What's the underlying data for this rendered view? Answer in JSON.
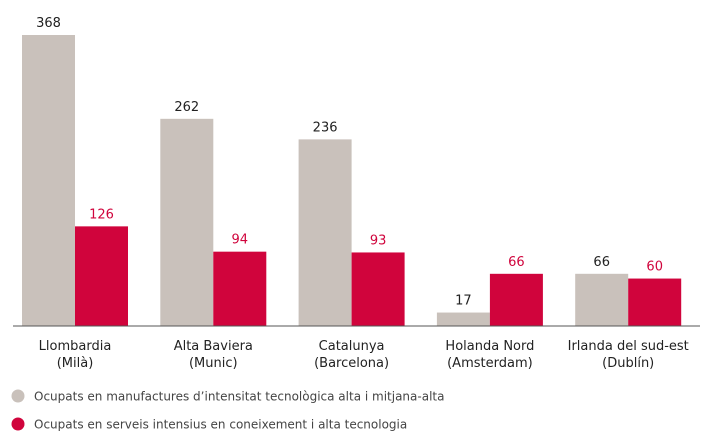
{
  "chart_data": {
    "type": "bar",
    "categories": [
      [
        "Llombardia",
        "(Milà)"
      ],
      [
        "Alta Baviera",
        "(Munic)"
      ],
      [
        "Catalunya",
        "(Barcelona)"
      ],
      [
        "Holanda Nord",
        "(Amsterdam)"
      ],
      [
        "Irlanda del sud-est",
        "(Dublín)"
      ]
    ],
    "series": [
      {
        "name": "Ocupats en manufactures d’intensitat tecnològica alta i mitjana-alta",
        "color": "#c9c1bb",
        "values": [
          368,
          262,
          236,
          17,
          66
        ]
      },
      {
        "name": "Ocupats en serveis intensius en coneixement i alta tecnologia",
        "color": "#d0043c",
        "values": [
          126,
          94,
          93,
          66,
          60
        ]
      }
    ],
    "ylim": [
      0,
      368
    ]
  }
}
